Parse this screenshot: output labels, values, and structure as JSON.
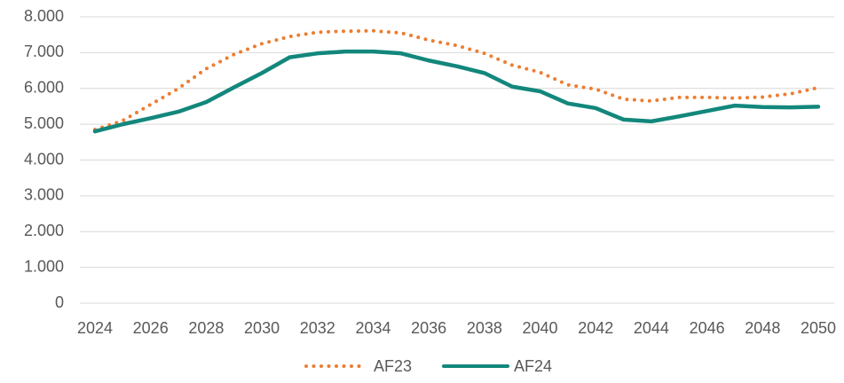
{
  "chart_data": {
    "type": "line",
    "x": [
      2024,
      2025,
      2026,
      2027,
      2028,
      2029,
      2030,
      2031,
      2032,
      2033,
      2034,
      2035,
      2036,
      2037,
      2038,
      2039,
      2040,
      2041,
      2042,
      2043,
      2044,
      2045,
      2046,
      2047,
      2048,
      2049,
      2050
    ],
    "xlim": [
      2024,
      2050
    ],
    "xticks": [
      2024,
      2026,
      2028,
      2030,
      2032,
      2034,
      2036,
      2038,
      2040,
      2042,
      2044,
      2046,
      2048,
      2050
    ],
    "ylim": [
      0,
      8000
    ],
    "yticks": [
      0,
      {
        "value": 1000,
        "label": "1.000"
      },
      {
        "value": 2000,
        "label": "2.000"
      },
      {
        "value": 3000,
        "label": "3.000"
      },
      {
        "value": 4000,
        "label": "4.000"
      },
      {
        "value": 5000,
        "label": "5.000"
      },
      {
        "value": 6000,
        "label": "6.000"
      },
      {
        "value": 7000,
        "label": "7.000"
      },
      {
        "value": 8000,
        "label": "8.000"
      }
    ],
    "grid": true,
    "legend": "bottom",
    "series": [
      {
        "name": "AF23",
        "color": "#ed7d31",
        "style": "dotted",
        "values": [
          4850,
          5100,
          5550,
          6000,
          6550,
          6950,
          7250,
          7450,
          7570,
          7600,
          7610,
          7550,
          7350,
          7200,
          6980,
          6650,
          6450,
          6100,
          5980,
          5700,
          5650,
          5750,
          5750,
          5730,
          5760,
          5850,
          6020
        ]
      },
      {
        "name": "AF24",
        "color": "#13877c",
        "style": "solid",
        "values": [
          4800,
          5000,
          5170,
          5350,
          5620,
          6030,
          6430,
          6870,
          6980,
          7030,
          7030,
          6980,
          6780,
          6620,
          6430,
          6050,
          5920,
          5580,
          5450,
          5130,
          5080,
          5220,
          5370,
          5520,
          5480,
          5470,
          5490
        ]
      }
    ]
  }
}
